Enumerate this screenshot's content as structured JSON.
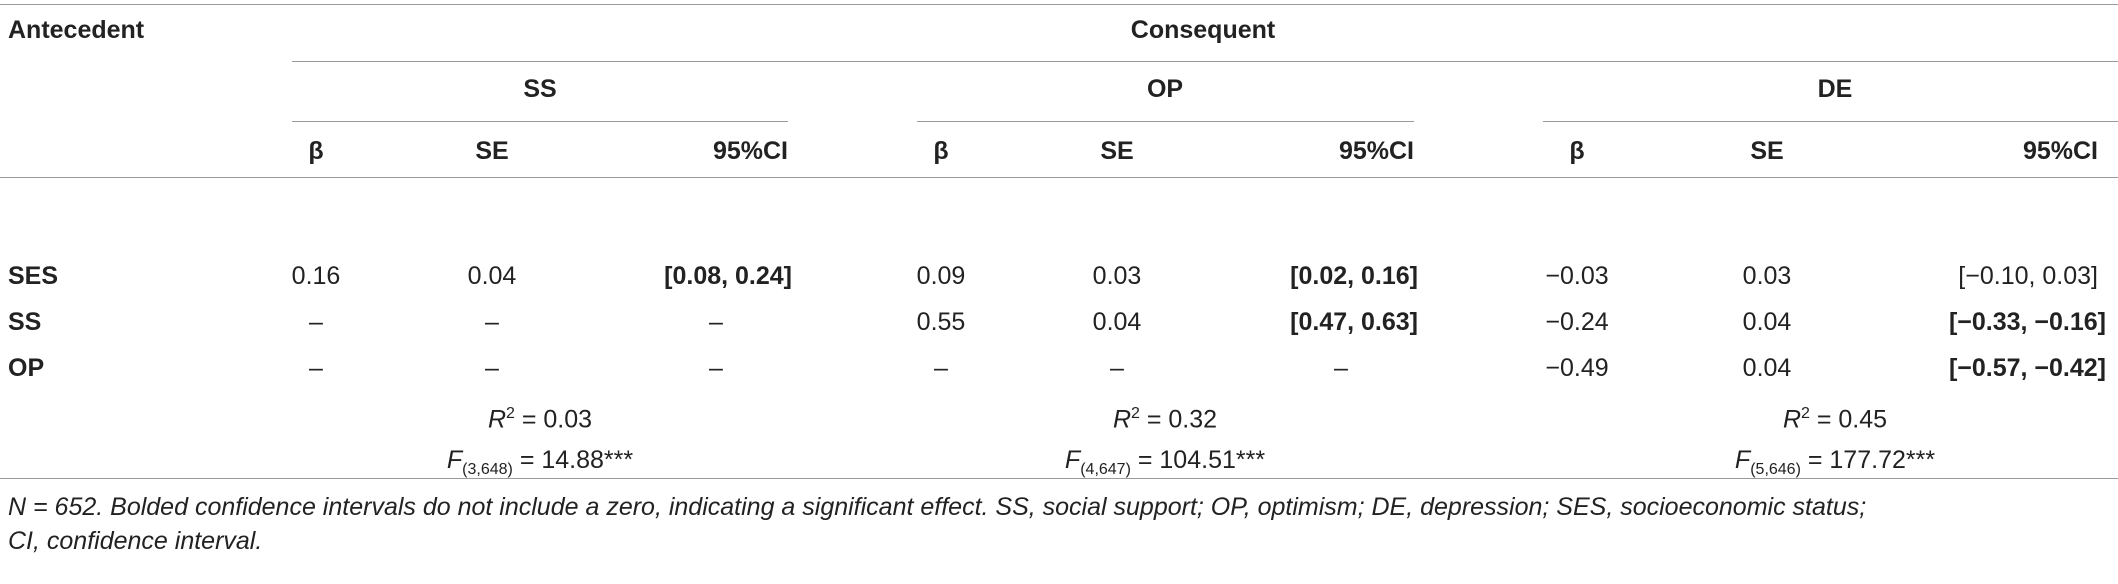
{
  "table": {
    "header": {
      "antecedent": "Antecedent",
      "consequent": "Consequent",
      "groups": [
        "SS",
        "OP",
        "DE"
      ],
      "subcols": [
        "β",
        "SE",
        "95%CI"
      ]
    },
    "rows": [
      {
        "label": "SES",
        "cells": [
          {
            "beta": "0.16",
            "se": "0.04",
            "ci": "[0.08, 0.24]",
            "ci_bold": true
          },
          {
            "beta": "0.09",
            "se": "0.03",
            "ci": "[0.02, 0.16]",
            "ci_bold": true
          },
          {
            "beta": "−0.03",
            "se": "0.03",
            "ci": "[−0.10, 0.03]",
            "ci_bold": false
          }
        ]
      },
      {
        "label": "SS",
        "cells": [
          {
            "beta": "–",
            "se": "–",
            "ci": "–",
            "ci_bold": false
          },
          {
            "beta": "0.55",
            "se": "0.04",
            "ci": "[0.47, 0.63]",
            "ci_bold": true
          },
          {
            "beta": "−0.24",
            "se": "0.04",
            "ci": "[−0.33, −0.16]",
            "ci_bold": true
          }
        ]
      },
      {
        "label": "OP",
        "cells": [
          {
            "beta": "–",
            "se": "–",
            "ci": "–",
            "ci_bold": false
          },
          {
            "beta": "–",
            "se": "–",
            "ci": "–",
            "ci_bold": false
          },
          {
            "beta": "−0.49",
            "se": "0.04",
            "ci": "[−0.57, −0.42]",
            "ci_bold": true
          }
        ]
      }
    ],
    "r2": [
      {
        "R": "R",
        "sup": "2",
        "rest": " = 0.03"
      },
      {
        "R": "R",
        "sup": "2",
        "rest": " = 0.32"
      },
      {
        "R": "R",
        "sup": "2",
        "rest": " = 0.45"
      }
    ],
    "f": [
      {
        "F": "F",
        "sub": "(3,648)",
        "rest": " = 14.88***"
      },
      {
        "F": "F",
        "sub": "(4,647)",
        "rest": " = 104.51***"
      },
      {
        "F": "F",
        "sub": "(5,646)",
        "rest": " = 177.72***"
      }
    ],
    "note_line1": "N = 652. Bolded confidence intervals do not include a zero, indicating a significant effect. SS, social support; OP, optimism; DE, depression; SES, socioeconomic status;",
    "note_line2": "CI, confidence interval."
  }
}
